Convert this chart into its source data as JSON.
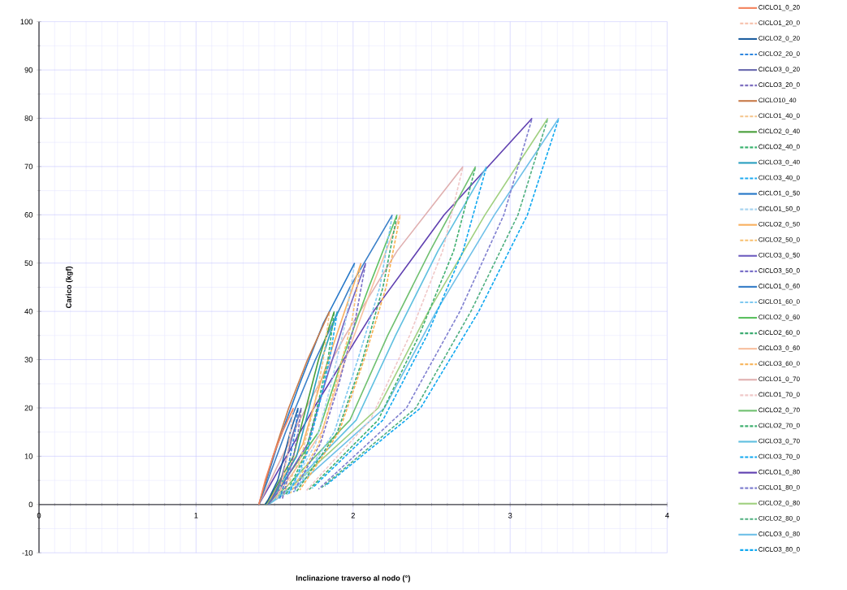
{
  "chart_data": {
    "type": "line",
    "xlabel": "Inclinazione traverso al nodo (°)",
    "ylabel": "Carico (kgf)",
    "xlim": [
      0,
      4
    ],
    "xticks": [
      0,
      1,
      2,
      3,
      4
    ],
    "ylim": [
      -10,
      100
    ],
    "yticks": [
      -10,
      0,
      10,
      20,
      30,
      40,
      50,
      60,
      70,
      80,
      90,
      100
    ],
    "grid": true,
    "legend": "right",
    "marker": "none",
    "series": [
      {
        "name": "CICLO1_0_20",
        "color": "#f4845f",
        "line_style": "solid",
        "x": [
          1.4,
          1.44,
          1.49,
          1.55,
          1.62
        ],
        "values": [
          0,
          5,
          10,
          15,
          20
        ]
      },
      {
        "name": "CICLO1_20_0",
        "color": "#f7c4b0",
        "line_style": "dashed",
        "x": [
          1.62,
          1.6,
          1.58,
          1.55,
          1.51
        ],
        "values": [
          20,
          15,
          10,
          5,
          0.8
        ]
      },
      {
        "name": "CICLO2_0_20",
        "color": "#1f5fa0",
        "line_style": "solid",
        "x": [
          1.44,
          1.46,
          1.52,
          1.56,
          1.6,
          1.65
        ],
        "values": [
          0,
          1,
          5,
          10,
          15,
          20
        ]
      },
      {
        "name": "CICLO2_20_0",
        "color": "#2e86de",
        "line_style": "dashed",
        "x": [
          1.65,
          1.63,
          1.6,
          1.57,
          1.53
        ],
        "values": [
          20,
          15,
          10,
          5,
          1.0
        ]
      },
      {
        "name": "CICLO3_0_20",
        "color": "#6c6cb0",
        "line_style": "solid",
        "x": [
          1.46,
          1.48,
          1.54,
          1.58,
          1.62,
          1.67
        ],
        "values": [
          0,
          1,
          5,
          10,
          15,
          20
        ]
      },
      {
        "name": "CICLO3_20_0",
        "color": "#7e6fc0",
        "line_style": "dashed",
        "x": [
          1.67,
          1.65,
          1.62,
          1.58,
          1.55
        ],
        "values": [
          20,
          15,
          10,
          5,
          1.2
        ]
      },
      {
        "name": "CICLO10_40",
        "color": "#c87b4a",
        "line_style": "solid",
        "x": [
          1.4,
          1.49,
          1.59,
          1.71,
          1.85
        ],
        "values": [
          0,
          10,
          20,
          30,
          40
        ]
      },
      {
        "name": "CICLO1_40_0",
        "color": "#f5c48a",
        "line_style": "dashed",
        "x": [
          1.85,
          1.81,
          1.75,
          1.67,
          1.55
        ],
        "values": [
          40,
          30,
          20,
          10,
          1.6
        ]
      },
      {
        "name": "CICLO2_0_40",
        "color": "#4aa03c",
        "line_style": "solid",
        "x": [
          1.44,
          1.48,
          1.62,
          1.7,
          1.78,
          1.88
        ],
        "values": [
          0,
          2,
          10,
          20,
          30,
          40
        ]
      },
      {
        "name": "CICLO2_40_0",
        "color": "#3cb371",
        "line_style": "dashed",
        "x": [
          1.88,
          1.84,
          1.77,
          1.69,
          1.57
        ],
        "values": [
          40,
          30,
          20,
          10,
          1.9
        ]
      },
      {
        "name": "CICLO3_0_40",
        "color": "#2a9fc0",
        "line_style": "solid",
        "x": [
          1.46,
          1.5,
          1.64,
          1.72,
          1.8,
          1.9
        ],
        "values": [
          0,
          2,
          10,
          20,
          30,
          40
        ]
      },
      {
        "name": "CICLO3_40_0",
        "color": "#1eaaf0",
        "line_style": "dashed",
        "x": [
          1.9,
          1.85,
          1.78,
          1.7,
          1.59
        ],
        "values": [
          40,
          30,
          20,
          10,
          2.2
        ]
      },
      {
        "name": "CICLO1_0_50",
        "color": "#2577c8",
        "line_style": "solid",
        "x": [
          1.4,
          1.52,
          1.66,
          1.81,
          2.01
        ],
        "values": [
          0,
          12.5,
          25,
          37.5,
          50
        ]
      },
      {
        "name": "CICLO1_50_0",
        "color": "#a8d4f0",
        "line_style": "dashed",
        "x": [
          2.01,
          1.95,
          1.86,
          1.76,
          1.58
        ],
        "values": [
          50,
          37.5,
          25,
          12.5,
          2
        ]
      },
      {
        "name": "CICLO2_0_50",
        "color": "#f8b060",
        "line_style": "solid",
        "x": [
          1.44,
          1.5,
          1.68,
          1.79,
          1.92,
          2.05
        ],
        "values": [
          0,
          2.5,
          12.5,
          25,
          37.5,
          50
        ]
      },
      {
        "name": "CICLO2_50_0",
        "color": "#f8c070",
        "line_style": "dashed",
        "x": [
          2.05,
          1.99,
          1.89,
          1.78,
          1.6
        ],
        "values": [
          50,
          37.5,
          25,
          12.5,
          2.3
        ]
      },
      {
        "name": "CICLO3_0_50",
        "color": "#7060c0",
        "line_style": "solid",
        "x": [
          1.46,
          1.52,
          1.71,
          1.82,
          1.94,
          2.08
        ],
        "values": [
          0,
          2.5,
          12.5,
          25,
          37.5,
          50
        ]
      },
      {
        "name": "CICLO3_50_0",
        "color": "#7a70c8",
        "line_style": "dashed",
        "x": [
          2.08,
          2.01,
          1.91,
          1.79,
          1.62
        ],
        "values": [
          50,
          37.5,
          25,
          12.5,
          2.6
        ]
      },
      {
        "name": "CICLO1_0_60",
        "color": "#3a80c8",
        "line_style": "solid",
        "x": [
          1.4,
          1.57,
          1.76,
          1.98,
          2.25
        ],
        "values": [
          0,
          15,
          30,
          45,
          60
        ]
      },
      {
        "name": "CICLO1_60_0",
        "color": "#7ec8f0",
        "line_style": "dashed",
        "x": [
          2.25,
          2.17,
          2.03,
          1.88,
          1.62
        ],
        "values": [
          60,
          45,
          30,
          15,
          2.4
        ]
      },
      {
        "name": "CICLO2_0_60",
        "color": "#5cc060",
        "line_style": "solid",
        "x": [
          1.44,
          1.52,
          1.78,
          1.93,
          2.1,
          2.28
        ],
        "values": [
          0,
          3,
          15,
          30,
          45,
          60
        ]
      },
      {
        "name": "CICLO2_60_0",
        "color": "#3aaa70",
        "line_style": "dashed",
        "x": [
          2.28,
          2.19,
          2.06,
          1.9,
          1.64
        ],
        "values": [
          60,
          45,
          30,
          15,
          2.7
        ]
      },
      {
        "name": "CICLO3_0_60",
        "color": "#f8c0a0",
        "line_style": "solid",
        "x": [
          1.46,
          1.54,
          1.8,
          1.95,
          2.12,
          2.3
        ],
        "values": [
          0,
          3,
          15,
          30,
          45,
          60
        ]
      },
      {
        "name": "CICLO3_60_0",
        "color": "#f8b050",
        "line_style": "dashed",
        "x": [
          2.3,
          2.21,
          2.07,
          1.91,
          1.66
        ],
        "values": [
          60,
          45,
          30,
          15,
          3
        ]
      },
      {
        "name": "CICLO1_0_70",
        "color": "#e0b0b0",
        "line_style": "solid",
        "x": [
          1.4,
          1.66,
          1.95,
          2.28,
          2.7
        ],
        "values": [
          0,
          17.5,
          35,
          52.5,
          70
        ]
      },
      {
        "name": "CICLO1_70_0",
        "color": "#f0c8c8",
        "line_style": "dashed",
        "x": [
          2.7,
          2.57,
          2.36,
          2.11,
          1.7
        ],
        "values": [
          70,
          52.5,
          35,
          17.5,
          2.8
        ]
      },
      {
        "name": "CICLO2_0_70",
        "color": "#70c070",
        "line_style": "solid",
        "x": [
          1.44,
          1.57,
          1.98,
          2.22,
          2.49,
          2.78
        ],
        "values": [
          0,
          3.5,
          17.5,
          35,
          52.5,
          70
        ]
      },
      {
        "name": "CICLO2_70_0",
        "color": "#40b070",
        "line_style": "dashed",
        "x": [
          2.78,
          2.64,
          2.42,
          2.16,
          1.72
        ],
        "values": [
          70,
          52.5,
          35,
          17.5,
          3.1
        ]
      },
      {
        "name": "CICLO3_0_70",
        "color": "#60c0e0",
        "line_style": "solid",
        "x": [
          1.46,
          1.6,
          2.02,
          2.27,
          2.54,
          2.85
        ],
        "values": [
          0,
          3.5,
          17.5,
          35,
          52.5,
          70
        ]
      },
      {
        "name": "CICLO3_70_0",
        "color": "#10a8f0",
        "line_style": "dashed",
        "x": [
          2.85,
          2.7,
          2.47,
          2.19,
          1.74
        ],
        "values": [
          70,
          52.5,
          35,
          17.5,
          3.4
        ]
      },
      {
        "name": "CICLO1_0_80",
        "color": "#6040b0",
        "line_style": "solid",
        "x": [
          1.4,
          1.75,
          2.13,
          2.58,
          3.14
        ],
        "values": [
          0,
          20,
          40,
          60,
          80
        ]
      },
      {
        "name": "CICLO1_80_0",
        "color": "#8080d0",
        "line_style": "dashed",
        "x": [
          3.14,
          2.96,
          2.68,
          2.34,
          1.78
        ],
        "values": [
          80,
          60,
          40,
          20,
          3.2
        ]
      },
      {
        "name": "CICLO2_0_80",
        "color": "#a0d080",
        "line_style": "solid",
        "x": [
          1.44,
          1.62,
          2.16,
          2.48,
          2.84,
          3.24
        ],
        "values": [
          0,
          4,
          20,
          40,
          60,
          80
        ]
      },
      {
        "name": "CICLO2_80_0",
        "color": "#50b080",
        "line_style": "dashed",
        "x": [
          3.24,
          3.05,
          2.75,
          2.4,
          1.8
        ],
        "values": [
          80,
          60,
          40,
          20,
          3.5
        ]
      },
      {
        "name": "CICLO3_0_80",
        "color": "#70c0e8",
        "line_style": "solid",
        "x": [
          1.46,
          1.65,
          2.2,
          2.53,
          2.9,
          3.31
        ],
        "values": [
          0,
          4,
          20,
          40,
          60,
          80
        ]
      },
      {
        "name": "CICLO3_80_0",
        "color": "#10a8f0",
        "line_style": "dashed",
        "x": [
          3.31,
          3.11,
          2.8,
          2.43,
          1.82
        ],
        "values": [
          80,
          60,
          40,
          20,
          3.8
        ]
      }
    ]
  }
}
